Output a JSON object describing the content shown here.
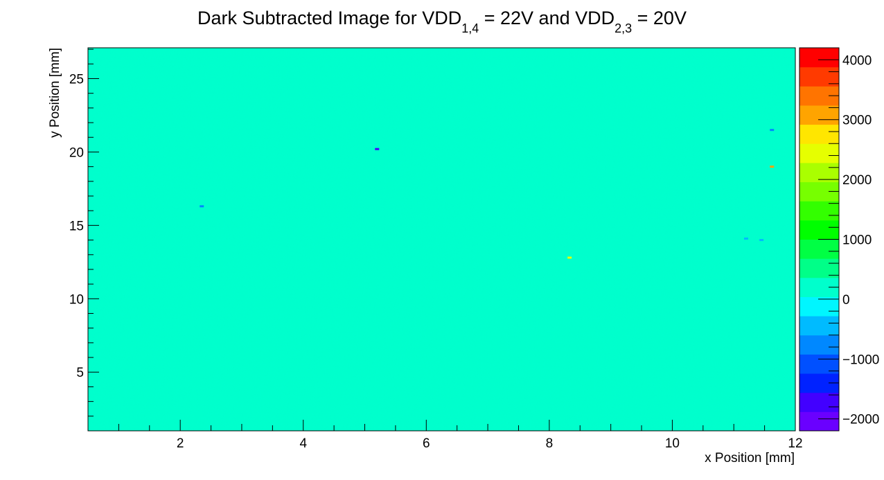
{
  "chart_data": {
    "type": "heatmap",
    "title": {
      "prefix": "Dark Subtracted Image for VDD",
      "sub1": "1,4",
      "mid": " = 22V and VDD",
      "sub2": "2,3",
      "suffix": " = 20V"
    },
    "xlabel": "x Position [mm]",
    "ylabel": "y Position [mm]",
    "xlim": [
      0.5,
      12
    ],
    "ylim": [
      1,
      27.1
    ],
    "x_ticks": [
      2,
      4,
      6,
      8,
      10,
      12
    ],
    "y_ticks": [
      5,
      10,
      15,
      20,
      25
    ],
    "grid": false,
    "background_value": 100,
    "hotspots": [
      {
        "x": 5.2,
        "y": 20.2,
        "value": -1600
      },
      {
        "x": 2.35,
        "y": 16.3,
        "value": -700
      },
      {
        "x": 8.33,
        "y": 12.8,
        "value": 2500
      },
      {
        "x": 11.62,
        "y": 21.5,
        "value": -900
      },
      {
        "x": 11.62,
        "y": 19.0,
        "value": 3000
      },
      {
        "x": 11.2,
        "y": 14.1,
        "value": -600
      },
      {
        "x": 11.45,
        "y": 14.0,
        "value": -500
      }
    ],
    "colorbar": {
      "min": -2200,
      "max": 4200,
      "tick_values": [
        -2000,
        -1000,
        0,
        1000,
        2000,
        3000,
        4000
      ],
      "tick_labels": [
        "−2000",
        "−1000",
        "0",
        "1000",
        "2000",
        "3000",
        "4000"
      ],
      "colors": [
        "#6a00ff",
        "#4200ff",
        "#0022ff",
        "#0050ff",
        "#0088ff",
        "#00bbff",
        "#00f6ff",
        "#00ffcc",
        "#00ff88",
        "#00ff44",
        "#00ff00",
        "#33ff00",
        "#77ff00",
        "#aaff00",
        "#e6ff00",
        "#ffe600",
        "#ffa400",
        "#ff7400",
        "#ff3a00",
        "#ff0000"
      ]
    }
  }
}
